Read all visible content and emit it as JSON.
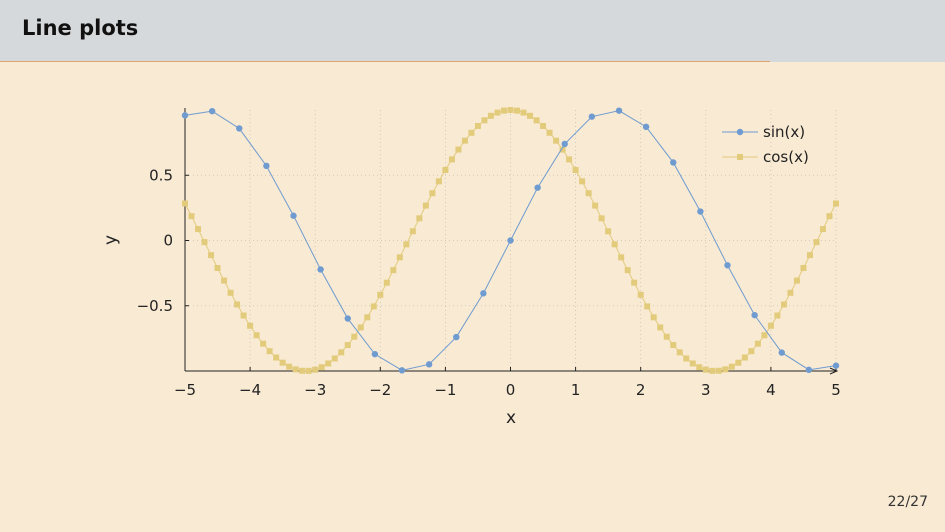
{
  "slide": {
    "title": "Line plots",
    "page_number": "22/27"
  },
  "colors": {
    "header_bg": "#d6d9db",
    "header_rule": "#e0a56c",
    "slide_bg": "#f9ead3",
    "sin_series": "#6f9bd0",
    "cos_series": "#e3cb7c"
  },
  "chart_data": {
    "type": "line",
    "title": "",
    "xlabel": "x",
    "ylabel": "y",
    "xlim": [
      -5,
      5
    ],
    "ylim": [
      -1,
      1
    ],
    "x_ticks": [
      -5,
      -4,
      -3,
      -2,
      -1,
      0,
      1,
      2,
      3,
      4,
      5
    ],
    "x_tick_labels": [
      "−5",
      "−4",
      "−3",
      "−2",
      "−1",
      "0",
      "1",
      "2",
      "3",
      "4",
      "5"
    ],
    "y_ticks": [
      -0.5,
      0,
      0.5
    ],
    "y_tick_labels": [
      "−0.5",
      "0",
      "0.5"
    ],
    "grid": "dotted",
    "legend_position": "top-right",
    "series": [
      {
        "name": "sin(x)",
        "marker": "circle",
        "function": "sin",
        "x": [
          -5,
          -4.583,
          -4.167,
          -3.75,
          -3.333,
          -2.917,
          -2.5,
          -2.083,
          -1.667,
          -1.25,
          -0.833,
          -0.417,
          0,
          0.417,
          0.833,
          1.25,
          1.667,
          2.083,
          2.5,
          2.917,
          3.333,
          3.75,
          4.167,
          4.583,
          5
        ],
        "values": [
          0.959,
          0.991,
          0.859,
          0.572,
          0.19,
          -0.222,
          -0.598,
          -0.871,
          -0.995,
          -0.949,
          -0.74,
          -0.405,
          0,
          0.405,
          0.74,
          0.949,
          0.995,
          0.871,
          0.598,
          0.222,
          -0.19,
          -0.572,
          -0.859,
          -0.991,
          -0.959
        ]
      },
      {
        "name": "cos(x)",
        "marker": "square",
        "function": "cos",
        "x_range": [
          -5,
          5
        ],
        "sample_count": 101
      }
    ]
  }
}
